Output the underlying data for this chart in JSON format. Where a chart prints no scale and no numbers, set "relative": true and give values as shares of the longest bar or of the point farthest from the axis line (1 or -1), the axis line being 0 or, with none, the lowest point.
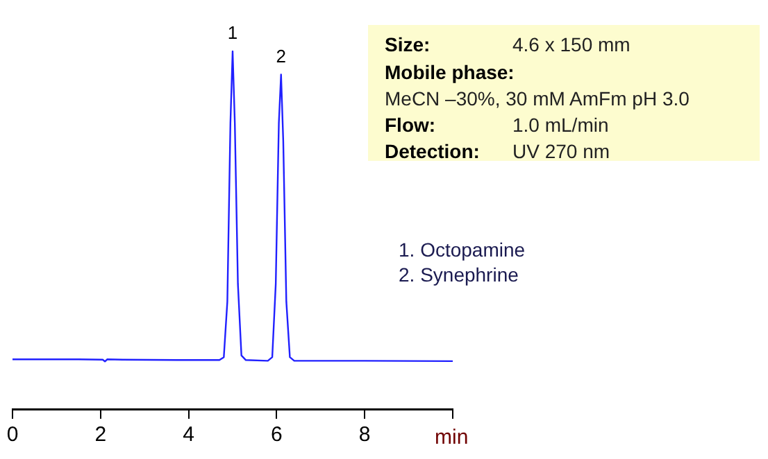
{
  "chart_data": {
    "type": "line",
    "relative": true,
    "xlabel": "min",
    "xlim": [
      0,
      10
    ],
    "xticks": [
      0,
      2,
      4,
      6,
      8,
      {
        "value": 10,
        "label": null
      }
    ],
    "grid": false,
    "legend": false,
    "marker": "none",
    "line_style": "solid",
    "series": [
      {
        "color": "#2020ff",
        "x": [
          0,
          1.5,
          2.05,
          2.1,
          2.15,
          2.5,
          4.0,
          4.7,
          4.8,
          4.88,
          4.95,
          5.0,
          5.05,
          5.12,
          5.2,
          5.3,
          5.8,
          5.9,
          5.98,
          6.05,
          6.1,
          6.15,
          6.22,
          6.3,
          6.4,
          8,
          10
        ],
        "values": [
          0.139,
          0.139,
          0.138,
          0.133,
          0.139,
          0.138,
          0.137,
          0.137,
          0.145,
          0.3,
          0.8,
          1.0,
          0.8,
          0.35,
          0.15,
          0.137,
          0.135,
          0.145,
          0.35,
          0.8,
          0.935,
          0.75,
          0.3,
          0.145,
          0.135,
          0.135,
          0.134
        ]
      }
    ],
    "annotations": [
      {
        "text": "1",
        "x": 5.0,
        "y": 1.0
      },
      {
        "text": "2",
        "x": 6.1,
        "y": 0.935
      },
      "Size:",
      "4.6 x 150 mm",
      "Mobile phase:",
      "MeCN –30%, 30 mM AmFm pH 3.0",
      "Flow:",
      "1.0 mL/min",
      "Detection:",
      "UV 270 nm",
      "1.  Octopamine",
      "2.  Synephrine"
    ]
  }
}
